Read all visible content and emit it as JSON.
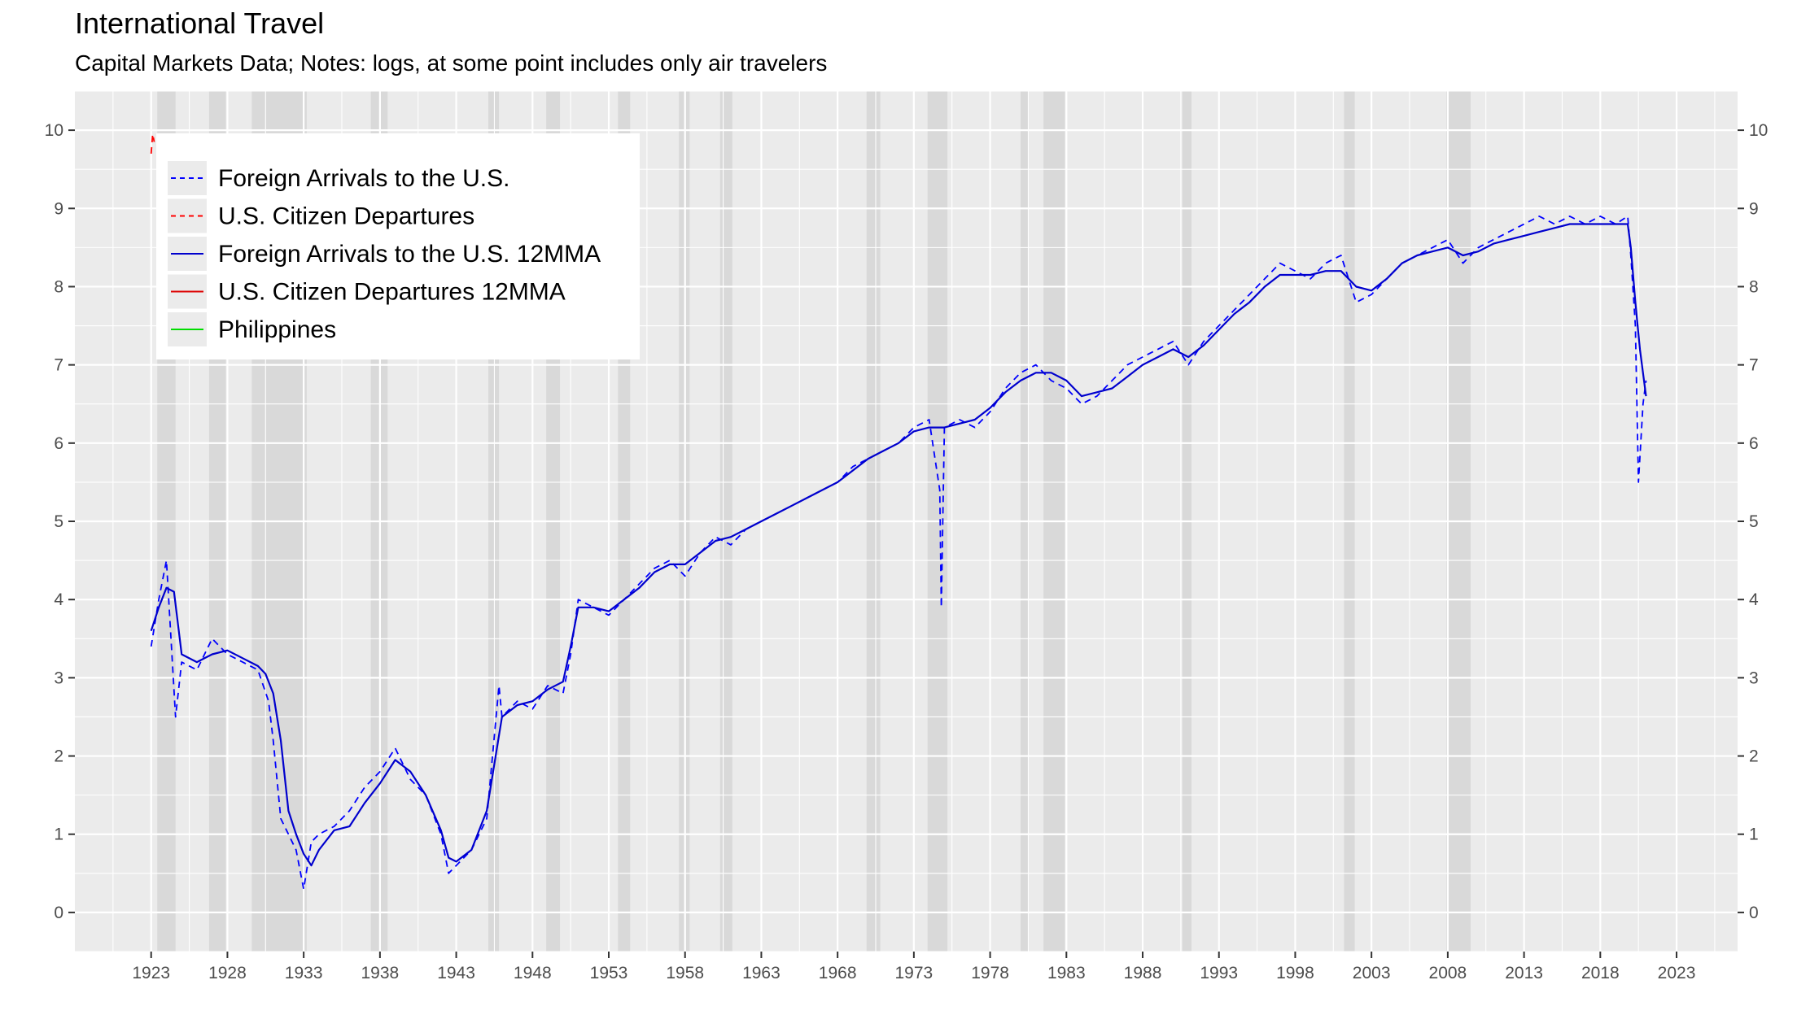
{
  "chart_data": {
    "type": "line",
    "title": "International Travel",
    "subtitle": "Capital Markets Data; Notes: logs, at some point includes only air travelers",
    "xlabel": "",
    "ylabel": "",
    "xlim": [
      1918,
      2027
    ],
    "ylim": [
      -0.5,
      10.5
    ],
    "x_ticks": [
      1923,
      1928,
      1933,
      1938,
      1943,
      1948,
      1953,
      1958,
      1963,
      1968,
      1973,
      1978,
      1983,
      1988,
      1993,
      1998,
      2003,
      2008,
      2013,
      2018,
      2023
    ],
    "y_ticks": [
      0,
      1,
      2,
      3,
      4,
      5,
      6,
      7,
      8,
      9,
      10
    ],
    "grid": true,
    "legend_position": "top-left",
    "recession_bands": [
      [
        1923.4,
        1924.6
      ],
      [
        1926.8,
        1927.9
      ],
      [
        1929.6,
        1933.2
      ],
      [
        1937.4,
        1938.5
      ],
      [
        1945.1,
        1945.8
      ],
      [
        1948.9,
        1949.8
      ],
      [
        1953.6,
        1954.4
      ],
      [
        1957.6,
        1958.3
      ],
      [
        1960.3,
        1961.1
      ],
      [
        1969.9,
        1970.8
      ],
      [
        1973.9,
        1975.2
      ],
      [
        1980.0,
        1980.5
      ],
      [
        1981.5,
        1982.9
      ],
      [
        1990.6,
        1991.2
      ],
      [
        2001.2,
        2001.9
      ],
      [
        2007.9,
        2009.5
      ]
    ],
    "series": [
      {
        "name": "Foreign Arrivals to the U.S.",
        "style": "dashed",
        "color": "#0000ff",
        "x": [
          1923.0,
          1923.5,
          1924.0,
          1924.3,
          1924.6,
          1925.0,
          1926.0,
          1927.0,
          1928.0,
          1929.0,
          1930.0,
          1930.7,
          1931.0,
          1931.5,
          1932.0,
          1932.5,
          1933.0,
          1933.5,
          1934.0,
          1935.0,
          1936.0,
          1937.0,
          1938.0,
          1939.0,
          1940.0,
          1941.0,
          1942.0,
          1942.5,
          1943.0,
          1944.0,
          1945.0,
          1945.8,
          1946.0,
          1947.0,
          1948.0,
          1949.0,
          1950.0,
          1950.5,
          1951.0,
          1952.0,
          1953.0,
          1954.0,
          1955.0,
          1956.0,
          1957.0,
          1958.0,
          1959.0,
          1960.0,
          1961.0,
          1962.0,
          1963.0,
          1964.0,
          1965.0,
          1966.0,
          1967.0,
          1968.0,
          1969.0,
          1970.0,
          1971.0,
          1972.0,
          1973.0,
          1974.0,
          1974.7,
          1974.8,
          1975.0,
          1976.0,
          1977.0,
          1978.0,
          1979.0,
          1980.0,
          1981.0,
          1982.0,
          1983.0,
          1984.0,
          1985.0,
          1986.0,
          1987.0,
          1988.0,
          1989.0,
          1990.0,
          1991.0,
          1992.0,
          1993.0,
          1994.0,
          1995.0,
          1996.0,
          1997.0,
          1998.0,
          1999.0,
          2000.0,
          2001.0,
          2002.0,
          2003.0,
          2004.0,
          2005.0,
          2006.0,
          2007.0,
          2008.0,
          2009.0,
          2010.0,
          2011.0,
          2012.0,
          2013.0,
          2014.0,
          2015.0,
          2016.0,
          2017.0,
          2018.0,
          2019.0,
          2019.8,
          2020.0,
          2020.3,
          2020.5,
          2020.8,
          2021.0
        ],
        "y": [
          3.4,
          4.0,
          4.5,
          3.5,
          2.5,
          3.2,
          3.1,
          3.5,
          3.3,
          3.2,
          3.1,
          2.7,
          2.2,
          1.2,
          1.0,
          0.8,
          0.3,
          0.9,
          1.0,
          1.1,
          1.3,
          1.6,
          1.8,
          2.1,
          1.7,
          1.5,
          1.0,
          0.5,
          0.6,
          0.8,
          1.2,
          2.9,
          2.5,
          2.7,
          2.6,
          2.9,
          2.8,
          3.3,
          4.0,
          3.9,
          3.8,
          4.0,
          4.2,
          4.4,
          4.5,
          4.3,
          4.6,
          4.8,
          4.7,
          4.9,
          5.0,
          5.1,
          5.2,
          5.3,
          5.4,
          5.5,
          5.7,
          5.8,
          5.9,
          6.0,
          6.2,
          6.3,
          5.4,
          3.9,
          6.2,
          6.3,
          6.2,
          6.4,
          6.7,
          6.9,
          7.0,
          6.8,
          6.7,
          6.5,
          6.6,
          6.8,
          7.0,
          7.1,
          7.2,
          7.3,
          7.0,
          7.3,
          7.5,
          7.7,
          7.9,
          8.1,
          8.3,
          8.2,
          8.1,
          8.3,
          8.4,
          7.8,
          7.9,
          8.1,
          8.3,
          8.4,
          8.5,
          8.6,
          8.3,
          8.5,
          8.6,
          8.7,
          8.8,
          8.9,
          8.8,
          8.9,
          8.8,
          8.9,
          8.8,
          8.9,
          8.4,
          7.5,
          5.5,
          6.5,
          6.8
        ]
      },
      {
        "name": "U.S. Citizen Departures",
        "style": "dashed",
        "color": "#ff0000",
        "x": [
          1923.0,
          1923.1,
          1923.2
        ],
        "y": [
          9.7,
          9.95,
          9.85
        ]
      },
      {
        "name": "Foreign Arrivals to the U.S. 12MMA",
        "style": "solid",
        "color": "#0000cd",
        "x": [
          1923.0,
          1923.5,
          1924.0,
          1924.5,
          1925.0,
          1926.0,
          1927.0,
          1928.0,
          1929.0,
          1930.0,
          1930.5,
          1931.0,
          1931.5,
          1932.0,
          1932.5,
          1933.0,
          1933.5,
          1934.0,
          1935.0,
          1936.0,
          1937.0,
          1938.0,
          1939.0,
          1940.0,
          1941.0,
          1942.0,
          1942.5,
          1943.0,
          1944.0,
          1945.0,
          1946.0,
          1947.0,
          1948.0,
          1949.0,
          1950.0,
          1950.5,
          1951.0,
          1952.0,
          1953.0,
          1954.0,
          1955.0,
          1956.0,
          1957.0,
          1958.0,
          1959.0,
          1960.0,
          1961.0,
          1962.0,
          1963.0,
          1964.0,
          1965.0,
          1966.0,
          1967.0,
          1968.0,
          1969.0,
          1970.0,
          1971.0,
          1972.0,
          1973.0,
          1974.0,
          1975.0,
          1976.0,
          1977.0,
          1978.0,
          1979.0,
          1980.0,
          1981.0,
          1982.0,
          1983.0,
          1984.0,
          1985.0,
          1986.0,
          1987.0,
          1988.0,
          1989.0,
          1990.0,
          1991.0,
          1992.0,
          1993.0,
          1994.0,
          1995.0,
          1996.0,
          1997.0,
          1998.0,
          1999.0,
          2000.0,
          2001.0,
          2002.0,
          2003.0,
          2004.0,
          2005.0,
          2006.0,
          2007.0,
          2008.0,
          2009.0,
          2010.0,
          2011.0,
          2012.0,
          2013.0,
          2014.0,
          2015.0,
          2016.0,
          2017.0,
          2018.0,
          2019.0,
          2019.8,
          2020.0,
          2020.3,
          2020.6,
          2021.0
        ],
        "y": [
          3.6,
          3.9,
          4.15,
          4.1,
          3.3,
          3.2,
          3.3,
          3.35,
          3.25,
          3.15,
          3.05,
          2.8,
          2.2,
          1.3,
          1.0,
          0.75,
          0.6,
          0.8,
          1.05,
          1.1,
          1.4,
          1.65,
          1.95,
          1.8,
          1.5,
          1.05,
          0.7,
          0.65,
          0.8,
          1.3,
          2.5,
          2.65,
          2.7,
          2.85,
          2.95,
          3.4,
          3.9,
          3.9,
          3.85,
          4.0,
          4.15,
          4.35,
          4.45,
          4.45,
          4.6,
          4.75,
          4.8,
          4.9,
          5.0,
          5.1,
          5.2,
          5.3,
          5.4,
          5.5,
          5.65,
          5.8,
          5.9,
          6.0,
          6.15,
          6.2,
          6.2,
          6.25,
          6.3,
          6.45,
          6.65,
          6.8,
          6.9,
          6.9,
          6.8,
          6.6,
          6.65,
          6.7,
          6.85,
          7.0,
          7.1,
          7.2,
          7.1,
          7.25,
          7.45,
          7.65,
          7.8,
          8.0,
          8.15,
          8.15,
          8.15,
          8.2,
          8.2,
          8.0,
          7.95,
          8.1,
          8.3,
          8.4,
          8.45,
          8.5,
          8.4,
          8.45,
          8.55,
          8.6,
          8.65,
          8.7,
          8.75,
          8.8,
          8.8,
          8.8,
          8.8,
          8.8,
          8.5,
          7.8,
          7.2,
          6.6
        ]
      },
      {
        "name": "U.S. Citizen Departures 12MMA",
        "style": "solid",
        "color": "#dd0000",
        "x": [],
        "y": []
      },
      {
        "name": "Philippines",
        "style": "solid",
        "color": "#00dd00",
        "x": [],
        "y": []
      }
    ]
  },
  "legend": {
    "items": [
      {
        "label": "Foreign Arrivals to the U.S.",
        "color": "#0000ff",
        "style": "dashed"
      },
      {
        "label": "U.S. Citizen Departures",
        "color": "#ff0000",
        "style": "dashed"
      },
      {
        "label": "Foreign Arrivals to the U.S. 12MMA",
        "color": "#0000cd",
        "style": "solid"
      },
      {
        "label": "U.S. Citizen Departures 12MMA",
        "color": "#dd0000",
        "style": "solid"
      },
      {
        "label": "Philippines",
        "color": "#00dd00",
        "style": "solid"
      }
    ]
  },
  "colors": {
    "panel": "#ebebeb",
    "grid_major": "#ffffff",
    "recession": "#d9d9d9"
  }
}
